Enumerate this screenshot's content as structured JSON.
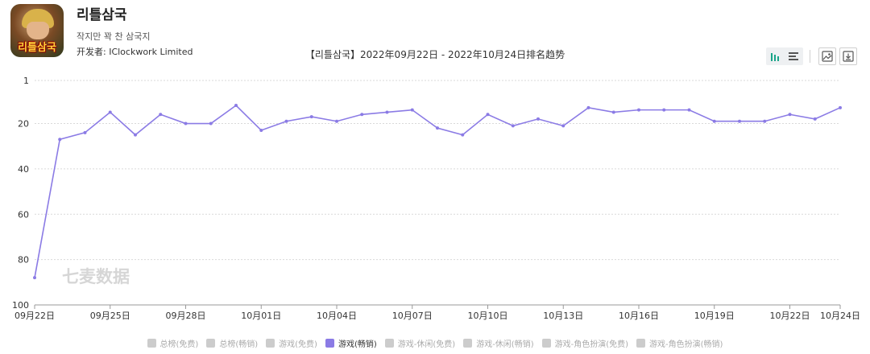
{
  "app": {
    "title": "리틀삼국",
    "subtitle": "작지만 꽉 찬 삼국지",
    "developer": "开发者: IClockwork Limited",
    "icon_text": "리틀삼국"
  },
  "toolbar": {
    "icons": [
      "bar-chart-icon",
      "list-icon",
      "image-icon",
      "download-icon"
    ]
  },
  "watermark": "七麦数据",
  "colors": {
    "line": "#8b7be5",
    "grid": "#d9d9d9",
    "axis_text": "#333333",
    "inactive": "#cccccc"
  },
  "chart_data": {
    "type": "line",
    "title": "【리틀삼국】2022年09月22日 - 2022年10月24日排名趋势",
    "xlabel": "",
    "ylabel": "",
    "y_inverted": true,
    "ylim": [
      1,
      100
    ],
    "y_ticks": [
      1,
      20,
      40,
      60,
      80,
      100
    ],
    "x": [
      "09月22日",
      "09月23日",
      "09月24日",
      "09月25日",
      "09月26日",
      "09月27日",
      "09月28日",
      "09月29日",
      "09月30日",
      "10月01日",
      "10月02日",
      "10月03日",
      "10月04日",
      "10月05日",
      "10月06日",
      "10月07日",
      "10月08日",
      "10月09日",
      "10月10日",
      "10月11日",
      "10月12日",
      "10月13日",
      "10月14日",
      "10月15日",
      "10月16日",
      "10月17日",
      "10月18日",
      "10月19日",
      "10月20日",
      "10月21日",
      "10月22日",
      "10月23日",
      "10月24日"
    ],
    "x_tick_labels": [
      "09月22日",
      "09月25日",
      "09月28日",
      "10月01日",
      "10月04日",
      "10月07日",
      "10月10日",
      "10月13日",
      "10月16日",
      "10月19日",
      "10月22日",
      "10月24日"
    ],
    "grid": true,
    "legend_position": "bottom",
    "series": [
      {
        "name": "游戏(畅销)",
        "values": [
          88,
          27,
          24,
          15,
          25,
          16,
          20,
          20,
          12,
          23,
          19,
          17,
          19,
          16,
          15,
          14,
          22,
          25,
          16,
          21,
          18,
          21,
          13,
          15,
          14,
          14,
          14,
          19,
          19,
          19,
          16,
          18,
          13
        ]
      }
    ],
    "legend": [
      {
        "label": "总榜(免费)",
        "active": false
      },
      {
        "label": "总榜(畅销)",
        "active": false
      },
      {
        "label": "游戏(免费)",
        "active": false
      },
      {
        "label": "游戏(畅销)",
        "active": true
      },
      {
        "label": "游戏-休闲(免费)",
        "active": false
      },
      {
        "label": "游戏-休闲(畅销)",
        "active": false
      },
      {
        "label": "游戏-角色扮演(免费)",
        "active": false
      },
      {
        "label": "游戏-角色扮演(畅销)",
        "active": false
      }
    ]
  }
}
